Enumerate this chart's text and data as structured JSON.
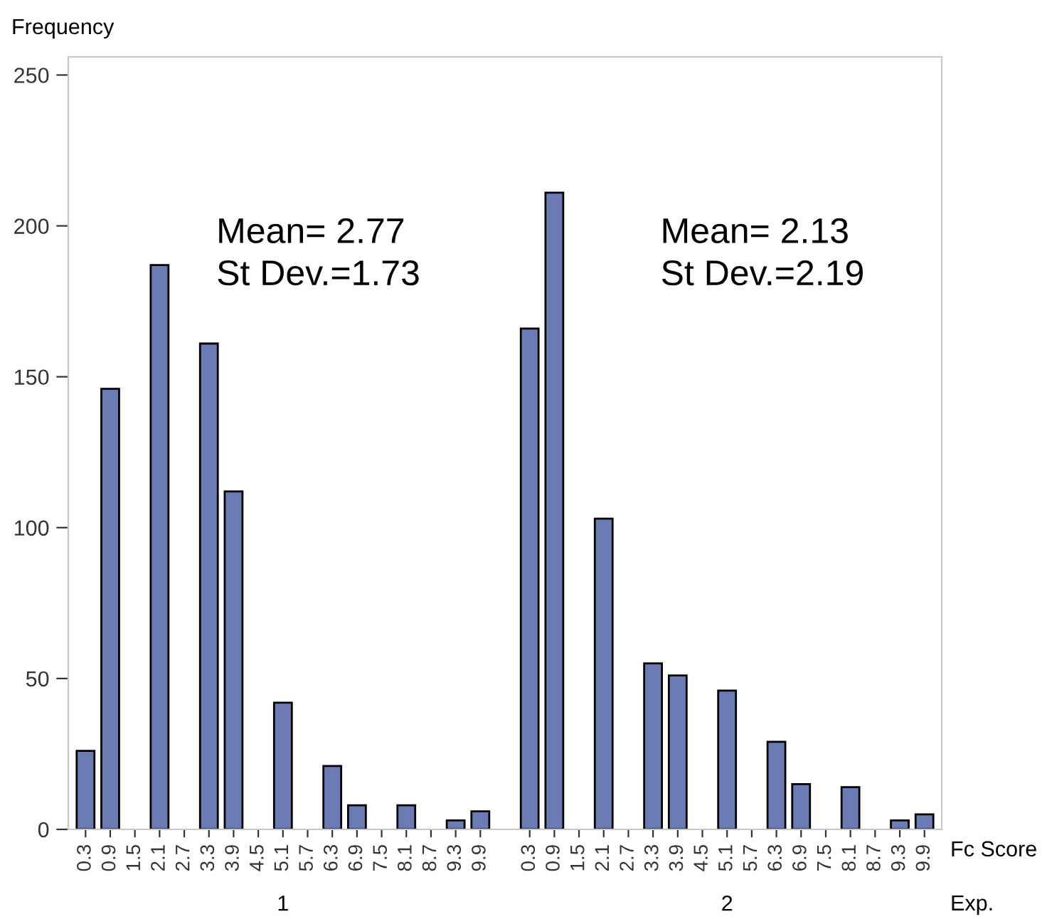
{
  "chart_data": {
    "type": "bar",
    "ylabel": "Frequency",
    "xlabel": "Fc Score",
    "legend_title": "Exp.",
    "categories": [
      "0.3",
      "0.9",
      "1.5",
      "2.1",
      "2.7",
      "3.3",
      "3.9",
      "4.5",
      "5.1",
      "5.7",
      "6.3",
      "6.9",
      "7.5",
      "8.1",
      "8.7",
      "9.3",
      "9.9",
      null,
      "0.3",
      "0.9",
      "1.5",
      "2.1",
      "2.7",
      "3.3",
      "3.9",
      "4.5",
      "5.1",
      "5.7",
      "6.3",
      "6.9",
      "7.5",
      "8.1",
      "8.7",
      "9.3",
      "9.9"
    ],
    "series": [
      {
        "color": "#6b7bb4",
        "values": [
          26,
          146,
          0,
          187,
          0,
          161,
          112,
          0,
          42,
          0,
          21,
          8,
          0,
          8,
          0,
          3,
          6,
          null,
          166,
          211,
          0,
          103,
          0,
          55,
          51,
          0,
          46,
          0,
          29,
          15,
          0,
          14,
          0,
          3,
          5
        ]
      }
    ],
    "annotations": [
      "Mean= 2.77\nSt Dev.=1.73",
      "Mean= 2.13\nSt Dev.=2.19",
      "1",
      "2"
    ],
    "ylim": [
      0,
      256
    ],
    "yticks": [
      0,
      50,
      100,
      150,
      200,
      250
    ],
    "grid": false,
    "legend": false
  }
}
